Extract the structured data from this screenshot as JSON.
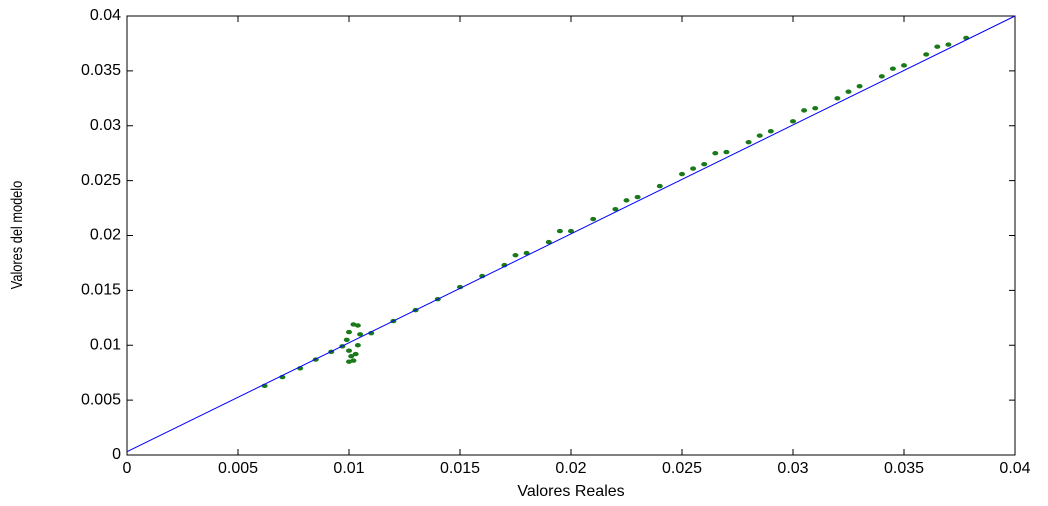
{
  "chart_data": {
    "type": "scatter",
    "x_label": "Valores Reales",
    "y_label": "Valores del modelo",
    "xlim": [
      0,
      0.04
    ],
    "ylim": [
      0,
      0.04
    ],
    "xticks": [
      0,
      0.005,
      0.01,
      0.015,
      0.02,
      0.025,
      0.03,
      0.035,
      0.04
    ],
    "yticks": [
      0,
      0.005,
      0.01,
      0.015,
      0.02,
      0.025,
      0.03,
      0.035,
      0.04
    ],
    "grid": false,
    "series": [
      {
        "type": "scatter",
        "color": "#1a7a1a",
        "x": [
          0.0062,
          0.007,
          0.0078,
          0.0085,
          0.0092,
          0.0097,
          0.01,
          0.0101,
          0.01,
          0.0099,
          0.01,
          0.0102,
          0.0104,
          0.0105,
          0.0104,
          0.0103,
          0.0102,
          0.011,
          0.012,
          0.013,
          0.014,
          0.015,
          0.016,
          0.017,
          0.0175,
          0.018,
          0.019,
          0.0195,
          0.02,
          0.021,
          0.022,
          0.0225,
          0.023,
          0.024,
          0.025,
          0.0255,
          0.026,
          0.0265,
          0.027,
          0.028,
          0.0285,
          0.029,
          0.03,
          0.0305,
          0.031,
          0.032,
          0.0325,
          0.033,
          0.034,
          0.0345,
          0.035,
          0.036,
          0.0365,
          0.037,
          0.0378
        ],
        "values": [
          0.0063,
          0.0071,
          0.0079,
          0.0087,
          0.0094,
          0.0099,
          0.0085,
          0.009,
          0.0095,
          0.0105,
          0.0112,
          0.0119,
          0.0118,
          0.011,
          0.01,
          0.0092,
          0.0086,
          0.0111,
          0.0122,
          0.0132,
          0.0142,
          0.0153,
          0.0163,
          0.0173,
          0.0182,
          0.0184,
          0.0194,
          0.0204,
          0.0204,
          0.0215,
          0.0224,
          0.0232,
          0.0235,
          0.0245,
          0.0256,
          0.0261,
          0.0265,
          0.0275,
          0.0276,
          0.0285,
          0.0291,
          0.0295,
          0.0304,
          0.0314,
          0.0316,
          0.0325,
          0.0331,
          0.0336,
          0.0345,
          0.0352,
          0.0355,
          0.0365,
          0.0372,
          0.0374,
          0.038
        ]
      },
      {
        "type": "line",
        "color": "#0000ff",
        "x": [
          0,
          0.04
        ],
        "values": [
          0.0003,
          0.04
        ]
      }
    ]
  }
}
